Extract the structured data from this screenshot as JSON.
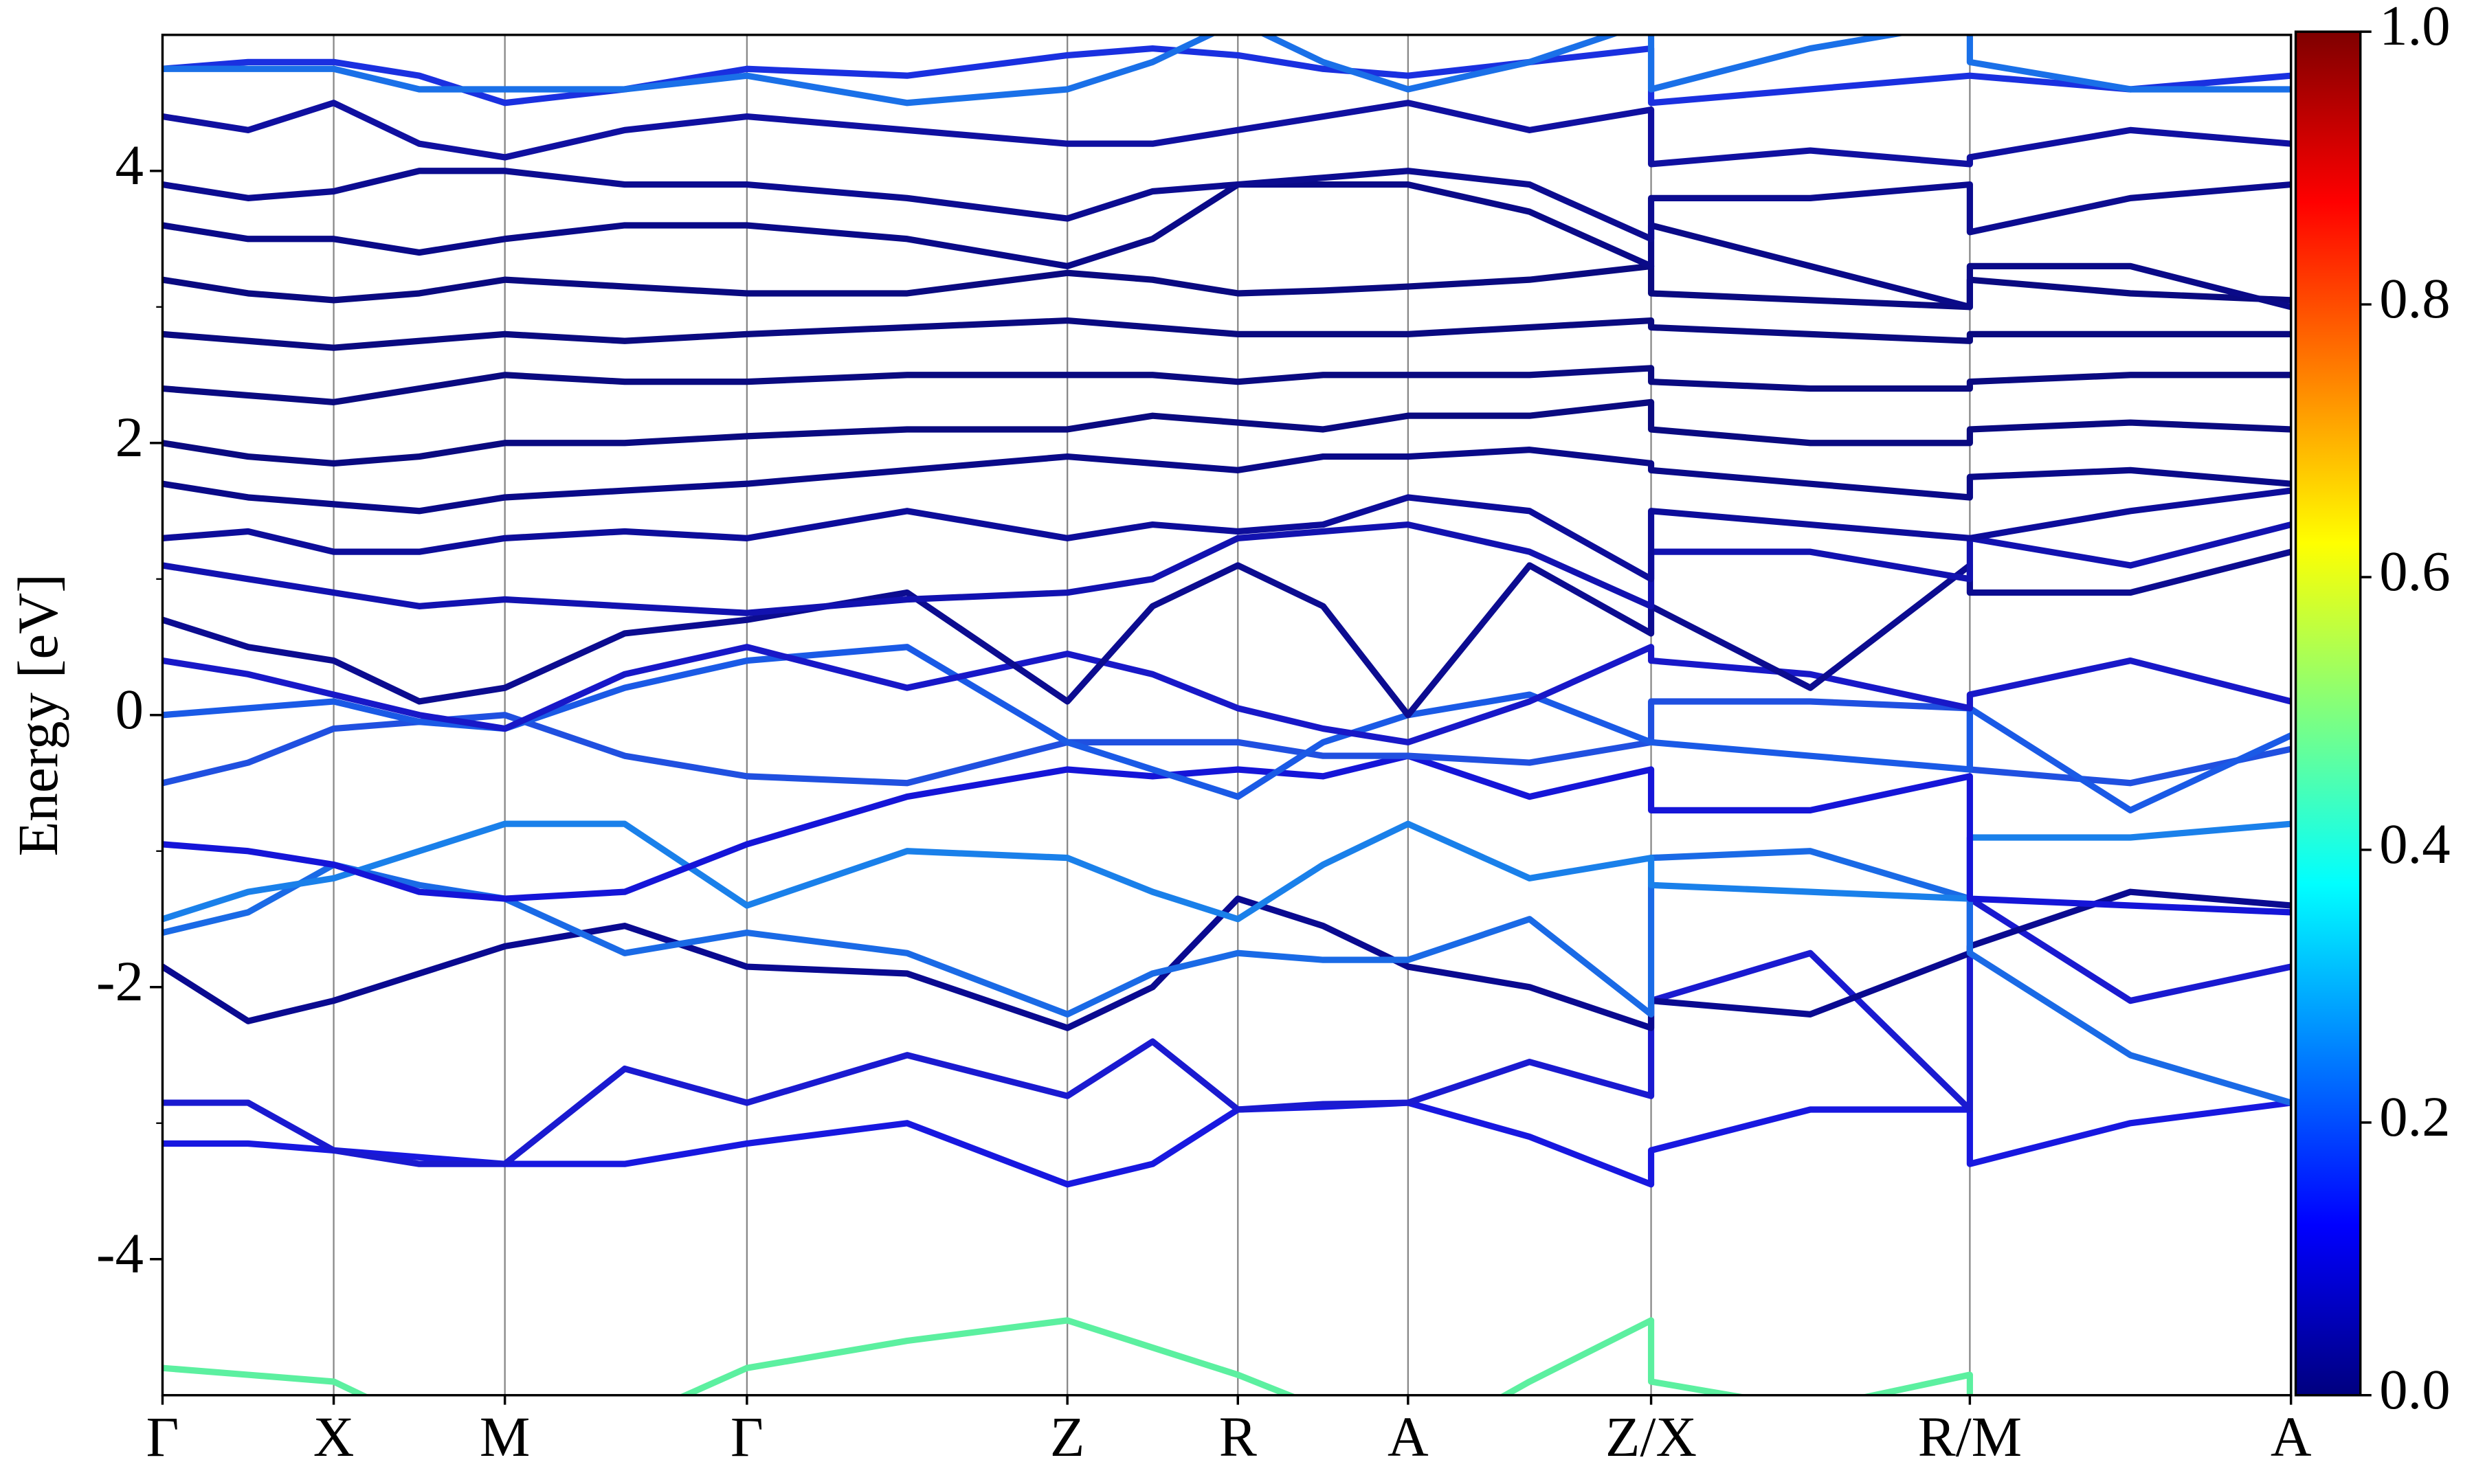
{
  "chart_data": {
    "type": "line",
    "ylabel": "Energy [eV]",
    "x": [
      0,
      0.25,
      0.5,
      0.75,
      1.0,
      1.35,
      1.707,
      2.175,
      2.643,
      2.892,
      3.141,
      3.39,
      3.638,
      3.993,
      4.348,
      4.348,
      4.813,
      5.279,
      5.279,
      5.748,
      6.217
    ],
    "xlim": [
      0,
      6.217
    ],
    "xticks": [
      {
        "value": 0,
        "label": "Γ"
      },
      {
        "value": 0.5,
        "label": "X"
      },
      {
        "value": 1.0,
        "label": "M"
      },
      {
        "value": 1.707,
        "label": "Γ"
      },
      {
        "value": 2.643,
        "label": "Z"
      },
      {
        "value": 3.141,
        "label": "R"
      },
      {
        "value": 3.638,
        "label": "A"
      },
      {
        "value": 4.348,
        "label": "Z/X"
      },
      {
        "value": 5.279,
        "label": "R/M"
      },
      {
        "value": 6.217,
        "label": "A"
      }
    ],
    "ylim": [
      -5,
      5
    ],
    "yticks": [
      -4,
      -2,
      0,
      2,
      4
    ],
    "yminor_ticks": [
      -3,
      -1,
      1,
      3
    ],
    "vertical_lines": true,
    "colorbar": {
      "lim": [
        0,
        1
      ],
      "colormap": [
        "#00007f",
        "#0000ff",
        "#007fff",
        "#00ffff",
        "#7fff7f",
        "#ffff00",
        "#ff7f00",
        "#ff0000",
        "#7f0000"
      ],
      "ticks": [
        {
          "value": 0,
          "label": "0.0"
        },
        {
          "value": 0.2,
          "label": "0.2"
        },
        {
          "value": 0.4,
          "label": "0.4"
        },
        {
          "value": 0.6,
          "label": "0.6"
        },
        {
          "value": 0.8,
          "label": "0.8"
        },
        {
          "value": 1.0,
          "label": "1.0"
        }
      ]
    },
    "series": [
      {
        "color": "#5cf0a0",
        "values": [
          -4.8,
          -4.85,
          -4.9,
          -5.2,
          -5.4,
          -5.2,
          -4.8,
          -4.6,
          -4.45,
          -4.65,
          -4.85,
          -5.1,
          -5.4,
          -4.9,
          -4.45,
          -4.9,
          -5.1,
          -4.85,
          -5.4,
          -5.4,
          -5.4
        ]
      },
      {
        "color": "#1818e0",
        "values": [
          -3.15,
          -3.15,
          -3.2,
          -3.25,
          -3.3,
          -3.3,
          -3.15,
          -3.0,
          -3.45,
          -3.3,
          -2.9,
          -2.88,
          -2.85,
          -3.1,
          -3.45,
          -3.2,
          -2.9,
          -2.9,
          -3.3,
          -3.0,
          -2.85
        ]
      },
      {
        "color": "#1a1ad0",
        "values": [
          -2.85,
          -2.85,
          -3.2,
          -3.3,
          -3.3,
          -2.6,
          -2.85,
          -2.5,
          -2.8,
          -2.4,
          -2.9,
          -2.86,
          -2.85,
          -2.55,
          -2.8,
          -2.1,
          -1.75,
          -2.9,
          -1.35,
          -2.1,
          -1.85
        ]
      },
      {
        "color": "#0a0a90",
        "values": [
          -1.85,
          -2.25,
          -2.1,
          -1.9,
          -1.7,
          -1.55,
          -1.85,
          -1.9,
          -2.3,
          -2.0,
          -1.35,
          -1.55,
          -1.85,
          -2.0,
          -2.3,
          -2.1,
          -2.2,
          -1.75,
          -1.7,
          -1.3,
          -1.4
        ]
      },
      {
        "color": "#1a6ae6",
        "values": [
          -1.6,
          -1.45,
          -1.1,
          -1.25,
          -1.35,
          -1.75,
          -1.6,
          -1.75,
          -2.2,
          -1.9,
          -1.75,
          -1.8,
          -1.8,
          -1.5,
          -2.2,
          -1.05,
          -1.0,
          -1.35,
          -1.75,
          -2.5,
          -2.85
        ]
      },
      {
        "color": "#1a80ea",
        "values": [
          -1.5,
          -1.3,
          -1.2,
          -1.0,
          -0.8,
          -0.8,
          -1.4,
          -1.0,
          -1.05,
          -1.3,
          -1.5,
          -1.1,
          -0.8,
          -1.2,
          -1.05,
          -1.25,
          -1.3,
          -1.35,
          -0.9,
          -0.9,
          -0.8
        ]
      },
      {
        "color": "#1515d8",
        "values": [
          -0.95,
          -1.0,
          -1.1,
          -1.3,
          -1.35,
          -1.3,
          -0.95,
          -0.6,
          -0.4,
          -0.45,
          -0.4,
          -0.45,
          -0.3,
          -0.6,
          -0.4,
          -0.7,
          -0.7,
          -0.45,
          -1.35,
          -1.4,
          -1.45
        ]
      },
      {
        "color": "#2050e0",
        "values": [
          -0.5,
          -0.35,
          -0.1,
          -0.05,
          0.0,
          -0.3,
          -0.45,
          -0.5,
          -0.2,
          -0.2,
          -0.2,
          -0.3,
          -0.3,
          -0.35,
          -0.2,
          0.1,
          0.1,
          0.05,
          -0.4,
          -0.5,
          -0.25
        ]
      },
      {
        "color": "#1a5ae6",
        "values": [
          0.0,
          0.05,
          0.1,
          -0.05,
          -0.1,
          0.2,
          0.4,
          0.5,
          -0.2,
          -0.4,
          -0.6,
          -0.2,
          0.0,
          0.15,
          -0.2,
          -0.2,
          -0.3,
          -0.4,
          0.05,
          -0.7,
          -0.15
        ]
      },
      {
        "color": "#1818c8",
        "values": [
          0.4,
          0.3,
          0.15,
          0.0,
          -0.1,
          0.3,
          0.5,
          0.2,
          0.45,
          0.3,
          0.05,
          -0.1,
          -0.2,
          0.1,
          0.5,
          0.4,
          0.3,
          0.05,
          0.15,
          0.4,
          0.1
        ]
      },
      {
        "color": "#0c0c90",
        "values": [
          0.7,
          0.5,
          0.4,
          0.1,
          0.2,
          0.6,
          0.7,
          0.9,
          0.1,
          0.8,
          1.1,
          0.8,
          0.0,
          1.1,
          0.6,
          0.8,
          0.2,
          1.1,
          0.9,
          0.9,
          1.2
        ]
      },
      {
        "color": "#1212b0",
        "values": [
          1.1,
          1.0,
          0.9,
          0.8,
          0.85,
          0.8,
          0.75,
          0.85,
          0.9,
          1.0,
          1.3,
          1.35,
          1.4,
          1.2,
          0.8,
          1.2,
          1.2,
          1.0,
          1.3,
          1.1,
          1.4
        ]
      },
      {
        "color": "#0d0d9a",
        "values": [
          1.3,
          1.35,
          1.2,
          1.2,
          1.3,
          1.35,
          1.3,
          1.5,
          1.3,
          1.4,
          1.35,
          1.4,
          1.6,
          1.5,
          1.0,
          1.5,
          1.4,
          1.3,
          1.3,
          1.5,
          1.65
        ]
      },
      {
        "color": "#0a0a88",
        "values": [
          1.7,
          1.6,
          1.55,
          1.5,
          1.6,
          1.65,
          1.7,
          1.8,
          1.9,
          1.85,
          1.8,
          1.9,
          1.9,
          1.95,
          1.85,
          1.8,
          1.7,
          1.6,
          1.75,
          1.8,
          1.7
        ]
      },
      {
        "color": "#0a0a80",
        "values": [
          2.0,
          1.9,
          1.85,
          1.9,
          2.0,
          2.0,
          2.05,
          2.1,
          2.1,
          2.2,
          2.15,
          2.1,
          2.2,
          2.2,
          2.3,
          2.1,
          2.0,
          2.0,
          2.1,
          2.15,
          2.1
        ]
      },
      {
        "color": "#0a0a80",
        "values": [
          2.4,
          2.35,
          2.3,
          2.4,
          2.5,
          2.45,
          2.45,
          2.5,
          2.5,
          2.5,
          2.45,
          2.5,
          2.5,
          2.5,
          2.55,
          2.45,
          2.4,
          2.4,
          2.45,
          2.5,
          2.5
        ]
      },
      {
        "color": "#0a0a80",
        "values": [
          2.8,
          2.75,
          2.7,
          2.75,
          2.8,
          2.75,
          2.8,
          2.85,
          2.9,
          2.85,
          2.8,
          2.8,
          2.8,
          2.85,
          2.9,
          2.85,
          2.8,
          2.75,
          2.8,
          2.8,
          2.8
        ]
      },
      {
        "color": "#0a0a80",
        "values": [
          3.2,
          3.1,
          3.05,
          3.1,
          3.2,
          3.15,
          3.1,
          3.1,
          3.25,
          3.2,
          3.1,
          3.12,
          3.15,
          3.2,
          3.3,
          3.1,
          3.05,
          3.0,
          3.2,
          3.1,
          3.05
        ]
      },
      {
        "color": "#0a0a88",
        "values": [
          3.6,
          3.5,
          3.5,
          3.4,
          3.5,
          3.6,
          3.6,
          3.5,
          3.3,
          3.5,
          3.9,
          3.9,
          3.9,
          3.7,
          3.3,
          3.6,
          3.3,
          3.0,
          3.3,
          3.3,
          3.0
        ]
      },
      {
        "color": "#0c0c90",
        "values": [
          3.9,
          3.8,
          3.85,
          4.0,
          4.0,
          3.9,
          3.9,
          3.8,
          3.65,
          3.85,
          3.9,
          3.95,
          4.0,
          3.9,
          3.5,
          3.8,
          3.8,
          3.9,
          3.55,
          3.8,
          3.9
        ]
      },
      {
        "color": "#1010a0",
        "values": [
          4.4,
          4.3,
          4.5,
          4.2,
          4.1,
          4.3,
          4.4,
          4.3,
          4.2,
          4.2,
          4.3,
          4.4,
          4.5,
          4.3,
          4.45,
          4.05,
          4.15,
          4.05,
          4.1,
          4.3,
          4.2
        ]
      },
      {
        "color": "#1a30e0",
        "values": [
          4.75,
          4.8,
          4.8,
          4.7,
          4.5,
          4.6,
          4.75,
          4.7,
          4.85,
          4.9,
          4.85,
          4.75,
          4.7,
          4.8,
          4.9,
          4.5,
          4.6,
          4.7,
          4.7,
          4.6,
          4.7
        ]
      },
      {
        "color": "#1a70e8",
        "values": [
          4.75,
          4.75,
          4.75,
          4.6,
          4.6,
          4.6,
          4.7,
          4.5,
          4.6,
          4.8,
          5.1,
          4.8,
          4.6,
          4.8,
          5.1,
          4.6,
          4.9,
          5.1,
          4.8,
          4.6,
          4.6
        ]
      }
    ]
  }
}
